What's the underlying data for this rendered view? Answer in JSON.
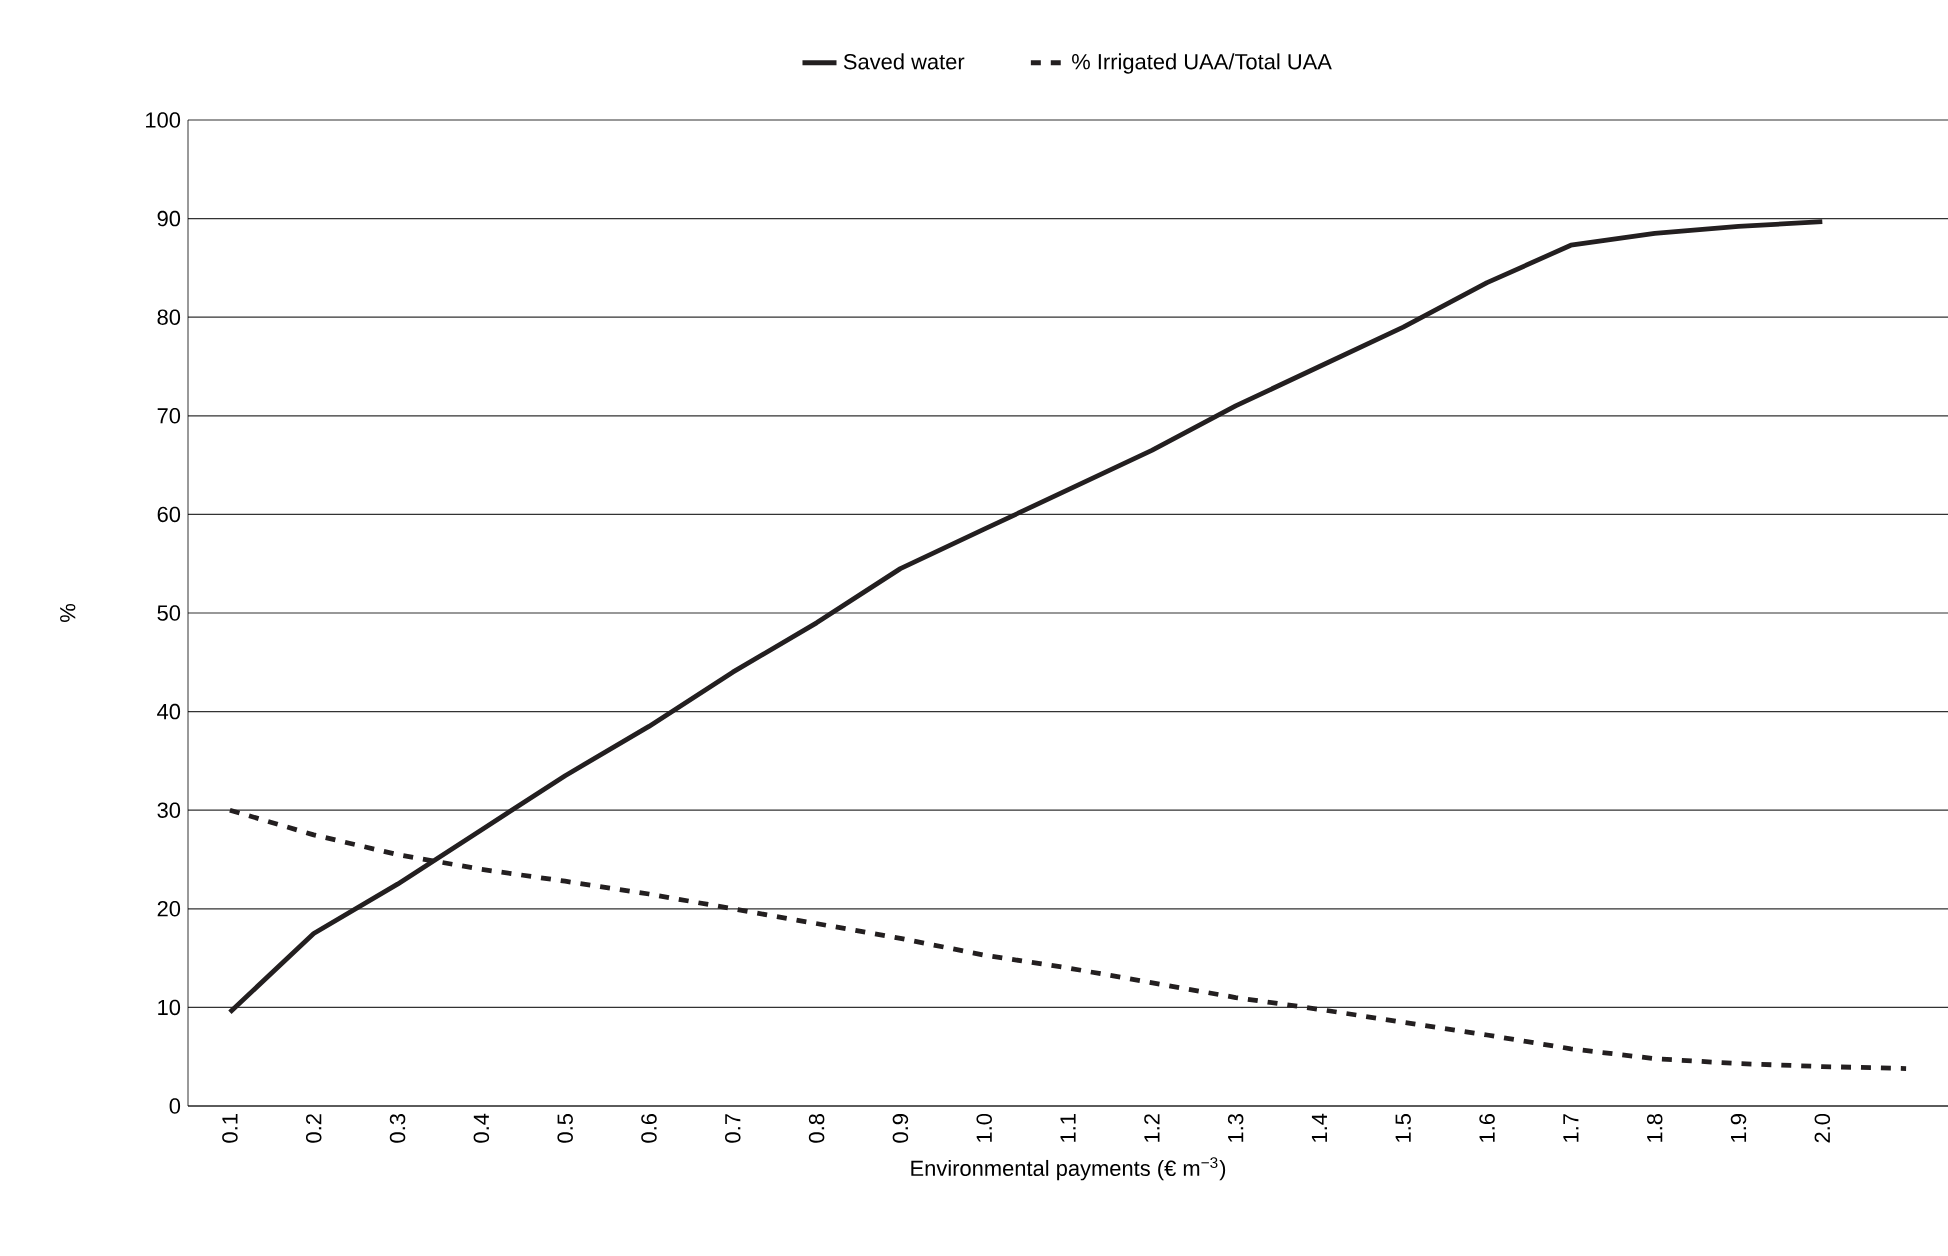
{
  "chart_data": {
    "type": "line",
    "xlabel": "Environmental payments (€ m$^{−3}$)",
    "ylabel": "%",
    "categories": [
      "0.1",
      "0.2",
      "0.3",
      "0.4",
      "0.5",
      "0.6",
      "0.7",
      "0.8",
      "0.9",
      "1.0",
      "1.1",
      "1.2",
      "1.3",
      "1.4",
      "1.5",
      "1.6",
      "1.7",
      "1.8",
      "1.9",
      "2.0",
      null
    ],
    "series": [
      {
        "name": "Saved water",
        "color": "#231f20",
        "line_style": "solid",
        "values": [
          9.5,
          17.5,
          22.5,
          28,
          33.5,
          38.5,
          44,
          49,
          54.5,
          58.5,
          62.5,
          66.5,
          71,
          75,
          79,
          83.5,
          87.3,
          88.5,
          89.2,
          89.7,
          null
        ]
      },
      {
        "name": "% Irrigated UAA/Total UAA",
        "color": "#231f20",
        "line_style": "dashed",
        "values": [
          30,
          27.5,
          25.5,
          24,
          22.8,
          21.5,
          20,
          18.5,
          17,
          15.3,
          14,
          12.5,
          11,
          9.8,
          8.5,
          7.2,
          5.8,
          4.8,
          4.3,
          4.0,
          3.8
        ]
      }
    ],
    "ylim": [
      0,
      100
    ],
    "yticks": [
      0,
      10,
      20,
      30,
      40,
      50,
      60,
      70,
      80,
      90,
      100
    ],
    "grid": "y",
    "legend": "top",
    "marker": "none"
  }
}
